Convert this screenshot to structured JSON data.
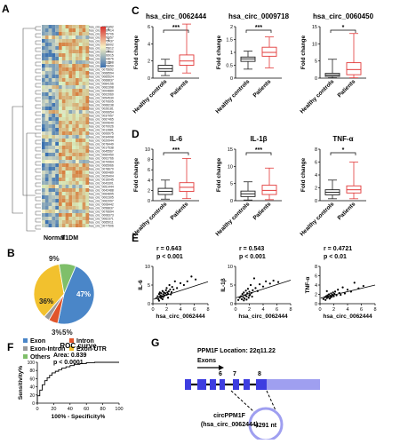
{
  "panel_letters": {
    "A": "A",
    "B": "B",
    "C": "C",
    "D": "D",
    "E": "E",
    "F": "F",
    "G": "G"
  },
  "colors": {
    "healthy": "#222222",
    "patient": "#e23b3b",
    "pie_exon": "#4a86c8",
    "pie_intron": "#e0552b",
    "pie_exon_intron": "#9a9a9a",
    "pie_exon_utr": "#f2c12e",
    "pie_others": "#7fbf6a",
    "gene_blue": "#3d3de0"
  },
  "heatmap": {
    "group_labels": [
      "Normal",
      "T1DM"
    ],
    "legend_ticks": [
      "4",
      "2",
      "0",
      "-2"
    ],
    "rows": [
      "hsa_circ_0060492",
      "hsa_circ_0059414",
      "hsa_circ_0075706",
      "hsa_circ_0078957",
      "hsa_circ_0073437",
      "hsa_circ_0068002",
      "hsa_circ_0025612",
      "hsa_circ_0059462",
      "hsa_circ_0006915",
      "hsa_circ_0004876",
      "hsa_circ_0063598",
      "hsa_circ_0079650",
      "hsa_circ_0075692",
      "hsa_circ_0068594",
      "hsa_circ_0065524",
      "hsa_circ_0068837",
      "hsa_circ_0084156",
      "hsa_circ_0062398",
      "hsa_circ_0004880",
      "hsa_circ_0002060",
      "hsa_circ_0054530",
      "hsa_circ_0070605",
      "hsa_circ_0068238",
      "hsa_circ_0026181",
      "hsa_circ_0006654",
      "hsa_circ_0037957",
      "hsa_circ_0067465",
      "hsa_circ_0009640",
      "hsa_circ_0070026",
      "hsa_circ_0012881",
      "hsa_circ_0006975",
      "hsa_circ_0034998",
      "hsa_circ_0020944",
      "hsa_circ_0078449",
      "hsa_circ_0017538",
      "hsa_circ_0045567",
      "hsa_circ_0060450",
      "hsa_circ_0002766",
      "hsa_circ_0070964",
      "hsa_circ_0065966",
      "hsa_circ_0078670",
      "hsa_circ_0060489",
      "hsa_circ_0025404",
      "hsa_circ_0016045",
      "hsa_circ_0043301",
      "hsa_circ_0051444",
      "hsa_circ_0042488",
      "hsa_circ_0064895",
      "hsa_circ_0002305",
      "hsa_circ_0062097",
      "hsa_circ_0008442",
      "hsa_circ_0058837",
      "hsa_circ_0076694",
      "hsa_circ_0008373",
      "hsa_circ_0062371",
      "hsa_circ_0065011",
      "hsa_circ_0077506"
    ]
  },
  "chart_data": [
    {
      "type": "box",
      "panel": "C",
      "title": "hsa_circ_0062444",
      "ylabel": "Fold change",
      "categories": [
        "Healthy controls",
        "Patients"
      ],
      "ylim": [
        0,
        6
      ],
      "yticks": [
        0,
        2,
        4,
        6
      ],
      "significance": "***",
      "boxes": [
        {
          "min": 0.3,
          "q1": 0.8,
          "median": 1.1,
          "q3": 1.5,
          "max": 2.2
        },
        {
          "min": 0.6,
          "q1": 1.5,
          "median": 2.0,
          "q3": 2.7,
          "max": 6.3
        }
      ]
    },
    {
      "type": "box",
      "panel": "C",
      "title": "hsa_circ_0009718",
      "ylabel": "Fold change",
      "categories": [
        "Healthy controls",
        "Patients"
      ],
      "ylim": [
        0,
        2.0
      ],
      "yticks": [
        0,
        0.5,
        1.0,
        1.5,
        2.0
      ],
      "significance": "***",
      "boxes": [
        {
          "min": 0.35,
          "q1": 0.65,
          "median": 0.75,
          "q3": 0.82,
          "max": 1.05
        },
        {
          "min": 0.4,
          "q1": 0.85,
          "median": 1.0,
          "q3": 1.2,
          "max": 1.6
        }
      ]
    },
    {
      "type": "box",
      "panel": "C",
      "title": "hsa_circ_0060450",
      "ylabel": "Fold change",
      "categories": [
        "Healthy controls",
        "Patients"
      ],
      "ylim": [
        0,
        15
      ],
      "yticks": [
        0,
        5,
        10,
        15
      ],
      "significance": "*",
      "boxes": [
        {
          "min": 0.1,
          "q1": 0.5,
          "median": 0.9,
          "q3": 1.4,
          "max": 5.5
        },
        {
          "min": 0.1,
          "q1": 1.0,
          "median": 2.5,
          "q3": 4.5,
          "max": 13.0
        }
      ]
    },
    {
      "type": "box",
      "panel": "D",
      "title": "IL-6",
      "ylabel": "Fold change",
      "categories": [
        "Healthy controls",
        "Patients"
      ],
      "ylim": [
        0,
        10
      ],
      "yticks": [
        0,
        2,
        4,
        6,
        8,
        10
      ],
      "significance": "***",
      "boxes": [
        {
          "min": 0.3,
          "q1": 1.2,
          "median": 1.8,
          "q3": 2.4,
          "max": 4.0
        },
        {
          "min": 0.4,
          "q1": 1.8,
          "median": 2.6,
          "q3": 3.5,
          "max": 8.2
        }
      ]
    },
    {
      "type": "box",
      "panel": "D",
      "title": "IL-1β",
      "ylabel": "Fold change",
      "categories": [
        "Healthy controls",
        "Patients"
      ],
      "ylim": [
        0,
        15
      ],
      "yticks": [
        0,
        5,
        10,
        15
      ],
      "significance": "***",
      "boxes": [
        {
          "min": 0.2,
          "q1": 1.2,
          "median": 2.0,
          "q3": 2.8,
          "max": 5.5
        },
        {
          "min": 0.3,
          "q1": 1.8,
          "median": 3.0,
          "q3": 4.5,
          "max": 9.5
        }
      ]
    },
    {
      "type": "box",
      "panel": "D",
      "title": "TNF-α",
      "ylabel": "Fold change",
      "categories": [
        "Healthy controls",
        "Patients"
      ],
      "ylim": [
        0,
        8
      ],
      "yticks": [
        0,
        2,
        4,
        6,
        8
      ],
      "significance": "*",
      "boxes": [
        {
          "min": 0.3,
          "q1": 0.9,
          "median": 1.3,
          "q3": 1.7,
          "max": 3.2
        },
        {
          "min": 0.3,
          "q1": 1.2,
          "median": 1.7,
          "q3": 2.3,
          "max": 6.0
        }
      ]
    },
    {
      "type": "scatter",
      "panel": "E",
      "r": "r = 0.643",
      "p": "p < 0.001",
      "xlabel": "hsa_circ_0062444",
      "ylabel": "IL-6",
      "xlim": [
        0,
        8
      ],
      "ylim": [
        0,
        10
      ],
      "xticks": [
        0,
        2,
        4,
        6,
        8
      ],
      "yticks": [
        0,
        5,
        10
      ],
      "x": [
        0.5,
        0.7,
        0.8,
        0.9,
        1.0,
        1.0,
        1.1,
        1.2,
        1.2,
        1.3,
        1.4,
        1.5,
        1.5,
        1.6,
        1.7,
        1.8,
        1.9,
        2.0,
        2.0,
        2.1,
        2.2,
        2.3,
        2.4,
        2.5,
        2.6,
        2.8,
        3.0,
        3.2,
        3.5,
        4.0,
        4.5,
        5.0,
        5.6,
        6.2,
        2.2,
        1.4,
        0.9,
        2.7
      ],
      "y": [
        1.5,
        2.0,
        1.2,
        2.6,
        1.8,
        3.0,
        2.2,
        1.5,
        2.8,
        2.0,
        3.4,
        1.8,
        2.5,
        3.0,
        2.2,
        2.8,
        3.6,
        2.4,
        4.2,
        3.0,
        2.6,
        3.3,
        5.0,
        3.8,
        2.5,
        4.5,
        3.8,
        6.0,
        4.2,
        5.5,
        5.0,
        6.0,
        7.3,
        6.5,
        1.6,
        1.2,
        0.8,
        3.1
      ],
      "fit": [
        0.1,
        1.2,
        8.0,
        5.9
      ]
    },
    {
      "type": "scatter",
      "panel": "E",
      "r": "r = 0.543",
      "p": "p < 0.001",
      "xlabel": "hsa_circ_0062444",
      "ylabel": "IL-1β",
      "xlim": [
        0,
        8
      ],
      "ylim": [
        0,
        10
      ],
      "xticks": [
        0,
        2,
        4,
        6,
        8
      ],
      "yticks": [
        0,
        5,
        10
      ],
      "x": [
        0.4,
        0.6,
        0.8,
        0.9,
        1.0,
        1.1,
        1.2,
        1.3,
        1.4,
        1.5,
        1.6,
        1.7,
        1.8,
        1.9,
        2.0,
        2.1,
        2.2,
        2.3,
        2.5,
        2.7,
        2.9,
        3.2,
        3.5,
        4.0,
        4.4,
        5.0,
        5.5,
        6.2,
        1.2,
        1.6,
        2.0,
        2.4
      ],
      "y": [
        1.0,
        1.6,
        2.0,
        1.2,
        2.6,
        1.8,
        3.0,
        1.4,
        2.3,
        3.5,
        2.0,
        2.8,
        4.0,
        1.6,
        3.2,
        2.4,
        5.0,
        2.9,
        3.6,
        6.8,
        4.2,
        3.4,
        5.2,
        4.6,
        6.0,
        5.4,
        6.2,
        5.8,
        0.9,
        1.1,
        2.2,
        1.9
      ],
      "fit": [
        0.1,
        1.6,
        8.0,
        6.3
      ]
    },
    {
      "type": "scatter",
      "panel": "E",
      "r": "r = 0.4721",
      "p": "p < 0.01",
      "xlabel": "hsa_circ_0062444",
      "ylabel": "TNF-α",
      "xlim": [
        0,
        8
      ],
      "ylim": [
        0,
        8
      ],
      "xticks": [
        0,
        2,
        4,
        6,
        8
      ],
      "yticks": [
        0,
        2,
        4,
        6,
        8
      ],
      "x": [
        0.5,
        0.7,
        0.8,
        0.9,
        1.0,
        1.1,
        1.2,
        1.3,
        1.4,
        1.5,
        1.6,
        1.7,
        1.8,
        1.9,
        2.0,
        2.1,
        2.2,
        2.4,
        2.6,
        2.8,
        3.0,
        3.3,
        3.6,
        4.0,
        4.5,
        5.0,
        5.6,
        6.3,
        1.0,
        1.5
      ],
      "y": [
        1.0,
        1.4,
        0.8,
        1.6,
        1.2,
        1.8,
        1.4,
        2.0,
        1.1,
        1.7,
        2.2,
        1.5,
        1.9,
        2.4,
        1.6,
        2.1,
        2.6,
        1.8,
        3.0,
        2.3,
        1.9,
        3.5,
        2.2,
        3.0,
        2.6,
        4.5,
        3.3,
        3.8,
        2.7,
        1.3
      ],
      "fit": [
        0.1,
        1.2,
        8.0,
        4.0
      ]
    },
    {
      "type": "pie",
      "panel": "B",
      "labels": [
        "Exon",
        "Intron",
        "Exon-Intron",
        "Exon-UTR",
        "Others"
      ],
      "values": [
        47,
        5,
        3,
        36,
        9
      ],
      "slice_labels": [
        "47%",
        "5%",
        "3%",
        "36%",
        "9%"
      ]
    },
    {
      "type": "line",
      "panel": "F",
      "title": "ROC curve",
      "area": "Area: 0.839",
      "p": "p < 0.0001",
      "xlabel": "100% - Specificity%",
      "ylabel": "Sensitivity%",
      "xlim": [
        0,
        100
      ],
      "ylim": [
        0,
        100
      ],
      "xticks": [
        0,
        20,
        40,
        60,
        80,
        100
      ],
      "yticks": [
        0,
        20,
        40,
        60,
        80,
        100
      ],
      "x": [
        0,
        0,
        3,
        3,
        6,
        6,
        9,
        9,
        12,
        12,
        15,
        15,
        18,
        18,
        22,
        22,
        26,
        26,
        30,
        30,
        35,
        35,
        40,
        40,
        45,
        45,
        52,
        52,
        60,
        60,
        70,
        70,
        100
      ],
      "y": [
        0,
        18,
        18,
        32,
        32,
        45,
        45,
        55,
        55,
        62,
        62,
        68,
        68,
        74,
        74,
        78,
        78,
        82,
        82,
        86,
        86,
        89,
        89,
        92,
        92,
        95,
        95,
        97,
        97,
        99,
        99,
        100,
        100
      ]
    }
  ],
  "gene": {
    "location_label": "PPM1F Location: 22q11.22",
    "exons_label": "Exons",
    "exon_numbers": [
      "6",
      "7",
      "8"
    ],
    "circ_name": "circPPM1F",
    "circ_id": "(hsa_circ_0062444)",
    "circ_length": "4291 nt"
  }
}
